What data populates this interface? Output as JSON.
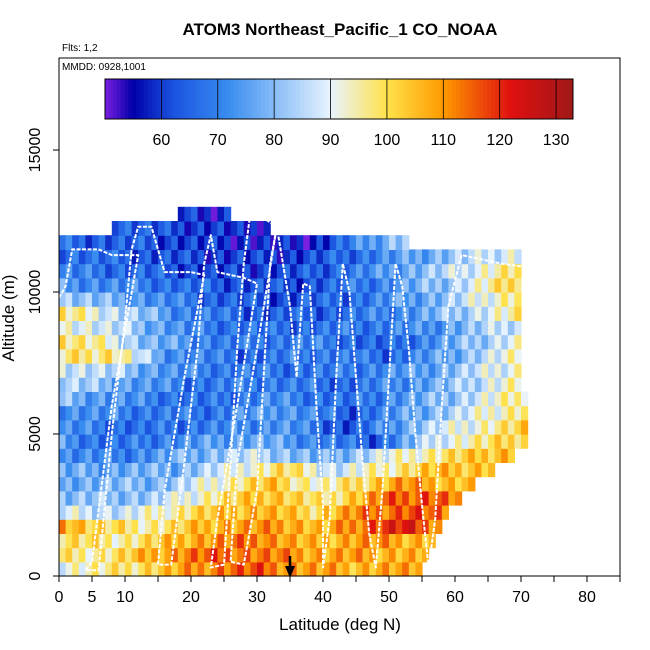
{
  "chart_data": {
    "type": "heatmap",
    "title": "ATOM3 Northeast_Pacific_1 CO_NOAA",
    "flights_label": "Flts: 1,2",
    "dates_label": "MMDD: 0928,1001",
    "xlabel": "Latitude (deg N)",
    "ylabel": "Altitude (m)",
    "xlim": [
      0,
      85
    ],
    "ylim": [
      0,
      17500
    ],
    "x_ticks": [
      0,
      5,
      10,
      20,
      30,
      40,
      50,
      60,
      70,
      80
    ],
    "y_ticks": [
      0,
      5000,
      10000,
      15000
    ],
    "grid": false,
    "colorbar": {
      "range": [
        50,
        133
      ],
      "ticks": [
        60,
        70,
        80,
        90,
        100,
        110,
        120,
        130
      ],
      "placement": "top-inside"
    },
    "colors": {
      "c_min": "#7b1fe0",
      "c_low": "#0000a8",
      "c_blue": "#1a52e0",
      "c_mid_blue": "#3a8ef0",
      "c_light": "#e8f4ff",
      "c_yellow": "#ffe24a",
      "c_orange": "#ff9a00",
      "c_red": "#e01010",
      "c_max": "#a01818"
    },
    "row_altitude_step_m": 500,
    "column_latitude_step_deg": 1,
    "latitude_start_deg": 0,
    "rows": [
      {
        "alt": 0,
        "lat_range": [
          0,
          55
        ],
        "anchors": [
          [
            0,
            92
          ],
          [
            8,
            96
          ],
          [
            16,
            104
          ],
          [
            24,
            114
          ],
          [
            30,
            116
          ],
          [
            36,
            110
          ],
          [
            44,
            106
          ],
          [
            50,
            108
          ],
          [
            55,
            106
          ]
        ]
      },
      {
        "alt": 500,
        "lat_range": [
          0,
          56
        ],
        "anchors": [
          [
            0,
            96
          ],
          [
            8,
            98
          ],
          [
            16,
            110
          ],
          [
            24,
            116
          ],
          [
            32,
            112
          ],
          [
            40,
            108
          ],
          [
            48,
            108
          ],
          [
            56,
            106
          ]
        ]
      },
      {
        "alt": 1000,
        "lat_range": [
          0,
          57
        ],
        "anchors": [
          [
            0,
            100
          ],
          [
            10,
            96
          ],
          [
            20,
            108
          ],
          [
            30,
            114
          ],
          [
            38,
            104
          ],
          [
            46,
            110
          ],
          [
            57,
            106
          ]
        ]
      },
      {
        "alt": 1500,
        "lat_range": [
          0,
          58
        ],
        "anchors": [
          [
            0,
            112
          ],
          [
            6,
            100
          ],
          [
            14,
            96
          ],
          [
            24,
            108
          ],
          [
            34,
            110
          ],
          [
            40,
            104
          ],
          [
            48,
            118
          ],
          [
            52,
            122
          ],
          [
            58,
            112
          ]
        ]
      },
      {
        "alt": 2000,
        "lat_range": [
          0,
          59
        ],
        "anchors": [
          [
            0,
            88
          ],
          [
            10,
            86
          ],
          [
            20,
            100
          ],
          [
            30,
            108
          ],
          [
            38,
            100
          ],
          [
            46,
            112
          ],
          [
            54,
            118
          ],
          [
            59,
            110
          ]
        ]
      },
      {
        "alt": 2500,
        "lat_range": [
          0,
          61
        ],
        "anchors": [
          [
            0,
            80
          ],
          [
            14,
            82
          ],
          [
            24,
            98
          ],
          [
            32,
            106
          ],
          [
            40,
            96
          ],
          [
            50,
            114
          ],
          [
            56,
            118
          ],
          [
            61,
            110
          ]
        ]
      },
      {
        "alt": 3000,
        "lat_range": [
          0,
          63
        ],
        "anchors": [
          [
            0,
            78
          ],
          [
            16,
            80
          ],
          [
            26,
            96
          ],
          [
            32,
            104
          ],
          [
            40,
            92
          ],
          [
            52,
            110
          ],
          [
            63,
            104
          ]
        ]
      },
      {
        "alt": 3500,
        "lat_range": [
          0,
          66
        ],
        "anchors": [
          [
            0,
            76
          ],
          [
            18,
            78
          ],
          [
            28,
            92
          ],
          [
            34,
            100
          ],
          [
            42,
            86
          ],
          [
            56,
            104
          ],
          [
            66,
            106
          ]
        ]
      },
      {
        "alt": 4000,
        "lat_range": [
          0,
          69
        ],
        "anchors": [
          [
            0,
            72
          ],
          [
            10,
            70
          ],
          [
            22,
            80
          ],
          [
            30,
            86
          ],
          [
            40,
            76
          ],
          [
            52,
            92
          ],
          [
            64,
            104
          ],
          [
            69,
            108
          ]
        ]
      },
      {
        "alt": 4500,
        "lat_range": [
          0,
          71
        ],
        "anchors": [
          [
            0,
            74
          ],
          [
            8,
            66
          ],
          [
            18,
            72
          ],
          [
            30,
            78
          ],
          [
            40,
            70
          ],
          [
            48,
            64
          ],
          [
            58,
            90
          ],
          [
            71,
            104
          ]
        ]
      },
      {
        "alt": 5000,
        "lat_range": [
          0,
          71
        ],
        "anchors": [
          [
            0,
            72
          ],
          [
            12,
            66
          ],
          [
            24,
            70
          ],
          [
            34,
            74
          ],
          [
            44,
            62
          ],
          [
            56,
            84
          ],
          [
            71,
            102
          ]
        ]
      },
      {
        "alt": 5500,
        "lat_range": [
          0,
          71
        ],
        "anchors": [
          [
            0,
            74
          ],
          [
            10,
            70
          ],
          [
            22,
            68
          ],
          [
            34,
            76
          ],
          [
            44,
            64
          ],
          [
            58,
            82
          ],
          [
            71,
            100
          ]
        ]
      },
      {
        "alt": 6000,
        "lat_range": [
          0,
          71
        ],
        "anchors": [
          [
            0,
            80
          ],
          [
            10,
            72
          ],
          [
            22,
            66
          ],
          [
            32,
            72
          ],
          [
            44,
            66
          ],
          [
            58,
            80
          ],
          [
            71,
            98
          ]
        ]
      },
      {
        "alt": 6500,
        "lat_range": [
          0,
          70
        ],
        "anchors": [
          [
            0,
            86
          ],
          [
            10,
            76
          ],
          [
            20,
            68
          ],
          [
            32,
            70
          ],
          [
            44,
            66
          ],
          [
            58,
            78
          ],
          [
            70,
            96
          ]
        ]
      },
      {
        "alt": 7000,
        "lat_range": [
          0,
          70
        ],
        "anchors": [
          [
            0,
            90
          ],
          [
            8,
            84
          ],
          [
            18,
            72
          ],
          [
            30,
            68
          ],
          [
            42,
            68
          ],
          [
            56,
            76
          ],
          [
            70,
            94
          ]
        ]
      },
      {
        "alt": 7500,
        "lat_range": [
          0,
          70
        ],
        "anchors": [
          [
            0,
            96
          ],
          [
            8,
            100
          ],
          [
            16,
            74
          ],
          [
            28,
            66
          ],
          [
            40,
            70
          ],
          [
            50,
            66
          ],
          [
            60,
            78
          ],
          [
            70,
            94
          ]
        ]
      },
      {
        "alt": 8000,
        "lat_range": [
          0,
          70
        ],
        "anchors": [
          [
            0,
            100
          ],
          [
            6,
            94
          ],
          [
            14,
            78
          ],
          [
            26,
            68
          ],
          [
            38,
            70
          ],
          [
            50,
            64
          ],
          [
            62,
            80
          ],
          [
            70,
            92
          ]
        ]
      },
      {
        "alt": 8500,
        "lat_range": [
          0,
          70
        ],
        "anchors": [
          [
            0,
            94
          ],
          [
            10,
            84
          ],
          [
            20,
            70
          ],
          [
            32,
            66
          ],
          [
            44,
            68
          ],
          [
            56,
            72
          ],
          [
            70,
            90
          ]
        ]
      },
      {
        "alt": 9000,
        "lat_range": [
          0,
          70
        ],
        "anchors": [
          [
            0,
            98
          ],
          [
            8,
            88
          ],
          [
            18,
            72
          ],
          [
            30,
            64
          ],
          [
            42,
            66
          ],
          [
            54,
            74
          ],
          [
            70,
            96
          ]
        ]
      },
      {
        "alt": 9500,
        "lat_range": [
          0,
          70
        ],
        "anchors": [
          [
            0,
            84
          ],
          [
            10,
            76
          ],
          [
            22,
            66
          ],
          [
            34,
            62
          ],
          [
            46,
            68
          ],
          [
            58,
            80
          ],
          [
            70,
            100
          ]
        ]
      },
      {
        "alt": 10000,
        "lat_range": [
          0,
          70
        ],
        "anchors": [
          [
            0,
            74
          ],
          [
            12,
            70
          ],
          [
            24,
            64
          ],
          [
            36,
            62
          ],
          [
            48,
            70
          ],
          [
            60,
            84
          ],
          [
            70,
            104
          ]
        ]
      },
      {
        "alt": 10500,
        "lat_range": [
          0,
          70
        ],
        "anchors": [
          [
            0,
            70
          ],
          [
            12,
            66
          ],
          [
            24,
            60
          ],
          [
            36,
            62
          ],
          [
            48,
            72
          ],
          [
            60,
            86
          ],
          [
            70,
            100
          ]
        ]
      },
      {
        "alt": 11000,
        "lat_range": [
          0,
          70
        ],
        "anchors": [
          [
            0,
            68
          ],
          [
            12,
            64
          ],
          [
            24,
            60
          ],
          [
            36,
            60
          ],
          [
            48,
            70
          ],
          [
            60,
            82
          ],
          [
            70,
            92
          ]
        ]
      },
      {
        "alt": 11500,
        "lat_range": [
          0,
          53
        ],
        "anchors": [
          [
            0,
            66
          ],
          [
            12,
            64
          ],
          [
            26,
            58
          ],
          [
            38,
            56
          ],
          [
            46,
            72
          ],
          [
            53,
            86
          ]
        ]
      },
      {
        "alt": 12000,
        "lat_range": [
          8,
          32
        ],
        "anchors": [
          [
            8,
            68
          ],
          [
            16,
            62
          ],
          [
            24,
            60
          ],
          [
            28,
            56
          ],
          [
            32,
            60
          ]
        ]
      },
      {
        "alt": 12500,
        "lat_range": [
          18,
          26
        ],
        "anchors": [
          [
            18,
            62
          ],
          [
            22,
            56
          ],
          [
            26,
            60
          ]
        ]
      }
    ],
    "flight_track": [
      [
        0,
        9800
      ],
      [
        1,
        10200
      ],
      [
        2,
        11500
      ],
      [
        4,
        11500
      ],
      [
        6,
        11500
      ],
      [
        8,
        11300
      ],
      [
        10,
        11300
      ],
      [
        12,
        11300
      ],
      [
        8,
        6000
      ],
      [
        5,
        500
      ],
      [
        4,
        200
      ],
      [
        6,
        200
      ],
      [
        8,
        5000
      ],
      [
        10,
        9000
      ],
      [
        11,
        11500
      ],
      [
        12,
        12300
      ],
      [
        14,
        12300
      ],
      [
        16,
        10700
      ],
      [
        20,
        10700
      ],
      [
        22,
        10600
      ],
      [
        19,
        7000
      ],
      [
        16,
        3000
      ],
      [
        15,
        400
      ],
      [
        17,
        400
      ],
      [
        19,
        4000
      ],
      [
        21,
        8000
      ],
      [
        22,
        11000
      ],
      [
        23,
        12000
      ],
      [
        24,
        10700
      ],
      [
        26,
        10600
      ],
      [
        28,
        10500
      ],
      [
        30,
        10300
      ],
      [
        27,
        6000
      ],
      [
        24,
        2000
      ],
      [
        23,
        300
      ],
      [
        25,
        400
      ],
      [
        26,
        4000
      ],
      [
        27,
        8000
      ],
      [
        28,
        11000
      ],
      [
        29,
        12800
      ],
      [
        31,
        12600
      ],
      [
        33,
        12300
      ],
      [
        30,
        8000
      ],
      [
        27,
        4000
      ],
      [
        26,
        500
      ],
      [
        28,
        400
      ],
      [
        30,
        3000
      ],
      [
        31,
        7000
      ],
      [
        32,
        11000
      ],
      [
        33,
        12300
      ],
      [
        35,
        9500
      ],
      [
        36,
        7000
      ],
      [
        37,
        10300
      ],
      [
        38,
        10200
      ],
      [
        39,
        6000
      ],
      [
        40,
        2500
      ],
      [
        40,
        300
      ],
      [
        41,
        2000
      ],
      [
        42,
        7000
      ],
      [
        43,
        11000
      ],
      [
        44,
        10000
      ],
      [
        45,
        7000
      ],
      [
        46,
        4000
      ],
      [
        47,
        1500
      ],
      [
        48,
        300
      ],
      [
        49,
        3000
      ],
      [
        50,
        7000
      ],
      [
        51,
        11000
      ],
      [
        52,
        10200
      ],
      [
        53,
        8000
      ],
      [
        54,
        5000
      ],
      [
        55,
        2500
      ],
      [
        56,
        300
      ],
      [
        57,
        2000
      ],
      [
        58,
        6000
      ],
      [
        59,
        9500
      ],
      [
        61,
        11300
      ],
      [
        63,
        11200
      ],
      [
        65,
        11100
      ],
      [
        67,
        11000
      ],
      [
        70,
        10900
      ]
    ],
    "arrow_latitude": 35
  }
}
